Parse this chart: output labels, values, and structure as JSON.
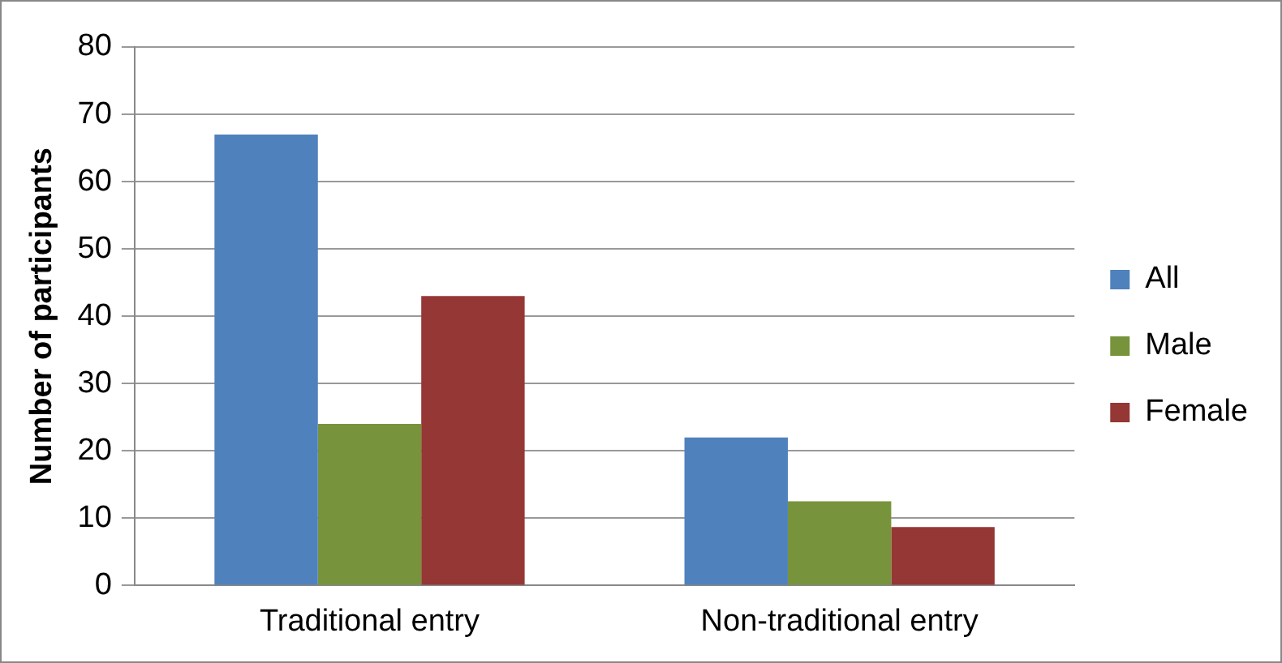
{
  "chart_data": {
    "type": "bar",
    "ylabel": "Number of participants",
    "categories": [
      "Traditional entry",
      "Non-traditional entry"
    ],
    "series": [
      {
        "name": "All",
        "color": "#4f81bd",
        "values": [
          67,
          22
        ]
      },
      {
        "name": "Male",
        "color": "#77933c",
        "values": [
          24,
          12.5
        ]
      },
      {
        "name": "Female",
        "color": "#953735",
        "values": [
          43,
          8.7
        ]
      }
    ],
    "ylim": [
      0,
      80
    ],
    "yticks": [
      0,
      10,
      20,
      30,
      40,
      50,
      60,
      70,
      80
    ],
    "grid": "y",
    "legend": "right"
  }
}
